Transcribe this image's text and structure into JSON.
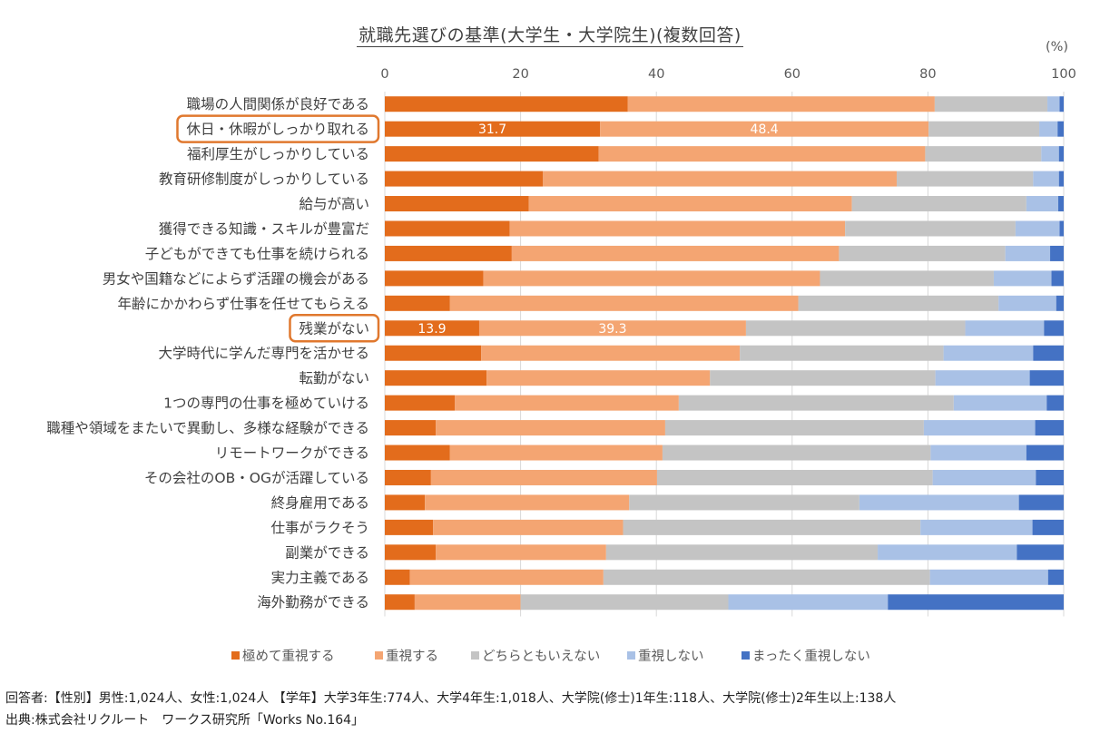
{
  "chart_data": {
    "type": "bar",
    "orientation": "horizontal",
    "stacked": true,
    "title": "就職先選びの基準(大学生・大学院生)(複数回答)",
    "unit_label": "(%)",
    "xlim": [
      0,
      100
    ],
    "xticks": [
      "0",
      "20",
      "40",
      "60",
      "80",
      "100"
    ],
    "grid": true,
    "legend_position": "bottom",
    "categories": [
      "職場の人間関係が良好である",
      "休日・休暇がしっかり取れる",
      "福利厚生がしっかりしている",
      "教育研修制度がしっかりしている",
      "給与が高い",
      "獲得できる知識・スキルが豊富だ",
      "子どもができても仕事を続けられる",
      "男女や国籍などによらず活躍の機会がある",
      "年齢にかかわらず仕事を任せてもらえる",
      "残業がない",
      "大学時代に学んだ専門を活かせる",
      "転勤がない",
      "1つの専門の仕事を極めていける",
      "職種や領域をまたいで異動し、多様な経験ができる",
      "リモートワークができる",
      "その会社のOB・OGが活躍している",
      "終身雇用である",
      "仕事がラクそう",
      "副業ができる",
      "実力主義である",
      "海外勤務ができる"
    ],
    "highlighted_categories": [
      "休日・休暇がしっかり取れる",
      "残業がない"
    ],
    "series": [
      {
        "name": "極めて重視する",
        "color": "#E36C1C",
        "values": [
          35.8,
          31.7,
          31.5,
          23.3,
          21.2,
          18.4,
          18.7,
          14.5,
          9.6,
          13.9,
          14.2,
          15.0,
          10.3,
          7.5,
          9.6,
          6.8,
          5.9,
          7.1,
          7.5,
          3.7,
          4.4
        ]
      },
      {
        "name": "重視する",
        "color": "#F4A572",
        "values": [
          45.2,
          48.4,
          48.1,
          52.1,
          47.6,
          49.4,
          48.2,
          49.6,
          51.3,
          39.3,
          38.1,
          32.9,
          33.0,
          33.8,
          31.3,
          33.3,
          30.1,
          28.0,
          25.1,
          28.5,
          15.6
        ]
      },
      {
        "name": "どちらともいえない",
        "color": "#C4C4C4",
        "values": [
          16.6,
          16.3,
          17.1,
          20.1,
          25.7,
          25.1,
          24.5,
          25.6,
          29.5,
          32.3,
          30.0,
          33.2,
          40.5,
          38.1,
          39.5,
          40.6,
          33.9,
          43.8,
          40.0,
          48.1,
          30.6
        ]
      },
      {
        "name": "重視しない",
        "color": "#A9C1E6",
        "values": [
          1.8,
          2.7,
          2.6,
          3.8,
          4.7,
          6.5,
          6.6,
          8.5,
          8.5,
          11.6,
          13.2,
          13.9,
          13.7,
          16.4,
          14.1,
          15.2,
          23.5,
          16.5,
          20.5,
          17.4,
          23.5
        ]
      },
      {
        "name": "まったく重視しない",
        "color": "#4472C4",
        "values": [
          0.6,
          0.9,
          0.7,
          0.7,
          0.8,
          0.6,
          2.0,
          1.8,
          1.1,
          2.9,
          4.5,
          5.0,
          2.5,
          4.2,
          5.5,
          4.1,
          6.6,
          4.6,
          6.9,
          2.3,
          25.9
        ]
      }
    ],
    "data_labels": [
      {
        "category": "休日・休暇がしっかり取れる",
        "series": 0,
        "text": "31.7"
      },
      {
        "category": "休日・休暇がしっかり取れる",
        "series": 1,
        "text": "48.4"
      },
      {
        "category": "残業がない",
        "series": 0,
        "text": "13.9"
      },
      {
        "category": "残業がない",
        "series": 1,
        "text": "39.3"
      }
    ]
  },
  "footer": {
    "respondents": "回答者:【性別】男性:1,024人、女性:1,024人 【学年】大学3年生:774人、大学4年生:1,018人、大学院(修士)1年生:118人、大学院(修士)2年生以上:138人",
    "source": "出典:株式会社リクルート　ワークス研究所「Works No.164」"
  }
}
